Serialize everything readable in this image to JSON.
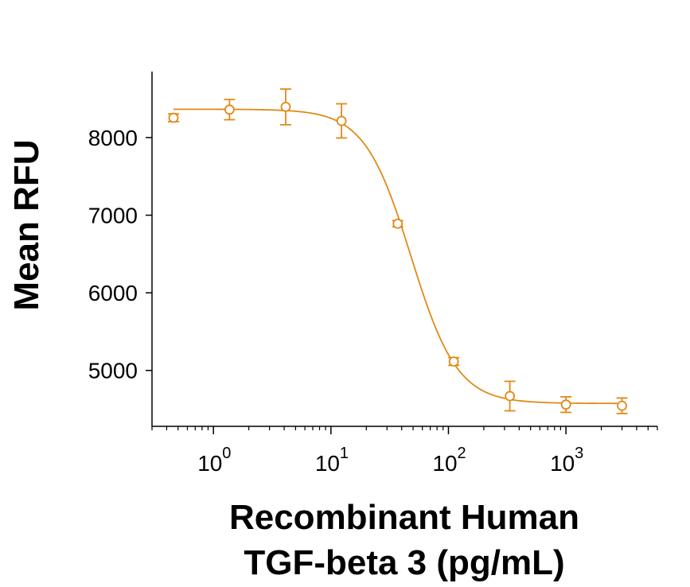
{
  "chart_data": {
    "type": "scatter",
    "title": "",
    "xlabel_lines": [
      "Recombinant Human",
      "TGF-beta 3 (pg/mL)"
    ],
    "ylabel": "Mean RFU",
    "x_scale": "log10",
    "xlim": [
      0.3,
      6000
    ],
    "ylim": [
      4280,
      8850
    ],
    "y_ticks": [
      5000,
      6000,
      7000,
      8000
    ],
    "x_major_ticks": [
      {
        "value": 1,
        "base": "10",
        "exp": "0"
      },
      {
        "value": 10,
        "base": "10",
        "exp": "1"
      },
      {
        "value": 100,
        "base": "10",
        "exp": "2"
      },
      {
        "value": 1000,
        "base": "10",
        "exp": "3"
      }
    ],
    "grid": false,
    "color": "#E08A18",
    "points": [
      {
        "x": 0.457,
        "y": 8255,
        "err": 50
      },
      {
        "x": 1.37,
        "y": 8360,
        "err": 130
      },
      {
        "x": 4.12,
        "y": 8395,
        "err": 230
      },
      {
        "x": 12.3,
        "y": 8215,
        "err": 220
      },
      {
        "x": 37.0,
        "y": 6890,
        "err": 40
      },
      {
        "x": 111,
        "y": 5115,
        "err": 50
      },
      {
        "x": 333,
        "y": 4670,
        "err": 190
      },
      {
        "x": 1000,
        "y": 4560,
        "err": 100
      },
      {
        "x": 3000,
        "y": 4545,
        "err": 100
      }
    ],
    "fit": {
      "model": "4PL",
      "top": 8365,
      "bottom": 4575,
      "ec50": 48,
      "hill": 2.2
    }
  }
}
